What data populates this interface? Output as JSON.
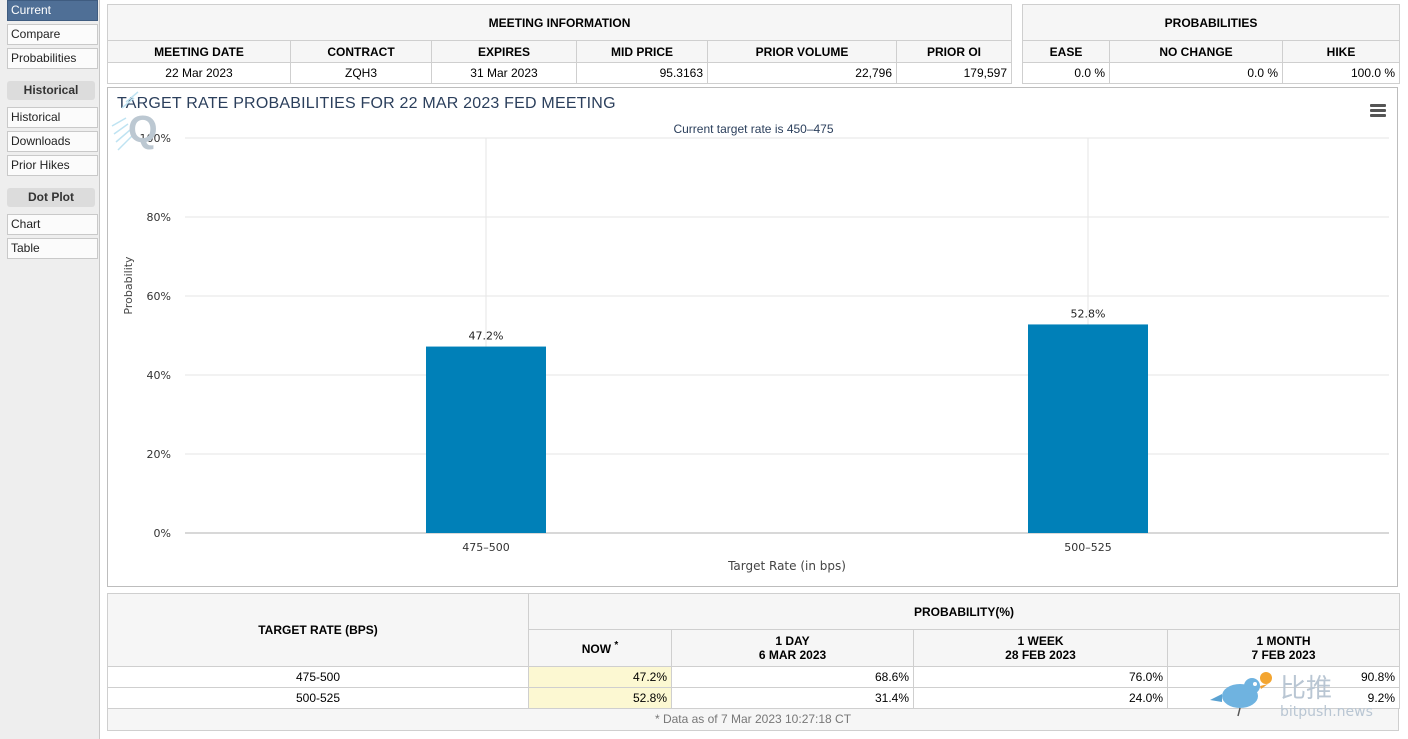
{
  "sidebar": {
    "current": "Current",
    "compare": "Compare",
    "probabilities": "Probabilities",
    "historical_heading": "Historical",
    "historical": "Historical",
    "downloads": "Downloads",
    "prior_hikes": "Prior Hikes",
    "dotplot_heading": "Dot Plot",
    "chart": "Chart",
    "table": "Table"
  },
  "meeting_info": {
    "heading": "MEETING INFORMATION",
    "columns": [
      "MEETING DATE",
      "CONTRACT",
      "EXPIRES",
      "MID PRICE",
      "PRIOR VOLUME",
      "PRIOR OI"
    ],
    "values": [
      "22 Mar 2023",
      "ZQH3",
      "31 Mar 2023",
      "95.3163",
      "22,796",
      "179,597"
    ]
  },
  "probabilities": {
    "heading": "PROBABILITIES",
    "columns": [
      "EASE",
      "NO CHANGE",
      "HIKE"
    ],
    "values": [
      "0.0 %",
      "0.0 %",
      "100.0 %"
    ]
  },
  "chart": {
    "menu_icon": "hamburger-menu-icon",
    "logo_icon": "q-logo-icon",
    "bar_color": "#0080b8"
  },
  "chart_data": {
    "type": "bar",
    "title": "TARGET RATE PROBABILITIES FOR 22 MAR 2023 FED MEETING",
    "subtitle": "Current target rate is 450–475",
    "xlabel": "Target Rate (in bps)",
    "ylabel": "Probability",
    "categories": [
      "475–500",
      "500–525"
    ],
    "values": [
      47.2,
      52.8
    ],
    "data_labels": [
      "47.2%",
      "52.8%"
    ],
    "ylim": [
      0,
      100
    ],
    "yticks": [
      "0%",
      "20%",
      "40%",
      "60%",
      "80%",
      "100%"
    ],
    "grid": true,
    "legend": false
  },
  "rates_table": {
    "target_header": "TARGET RATE (BPS)",
    "prob_header": "PROBABILITY(%)",
    "now_header": "NOW",
    "now_mark": "*",
    "col1_line1": "1 DAY",
    "col1_line2": "6 MAR 2023",
    "col2_line1": "1 WEEK",
    "col2_line2": "28 FEB 2023",
    "col3_line1": "1 MONTH",
    "col3_line2": "7 FEB 2023",
    "rows": [
      {
        "rate": "475-500",
        "now": "47.2%",
        "day": "68.6%",
        "week": "76.0%",
        "month": "90.8%"
      },
      {
        "rate": "500-525",
        "now": "52.8%",
        "day": "31.4%",
        "week": "24.0%",
        "month": "9.2%"
      }
    ],
    "footnote": "* Data as of 7 Mar 2023 10:27:18 CT"
  },
  "watermark": {
    "text": "比推",
    "sub": "bitpush.news"
  }
}
